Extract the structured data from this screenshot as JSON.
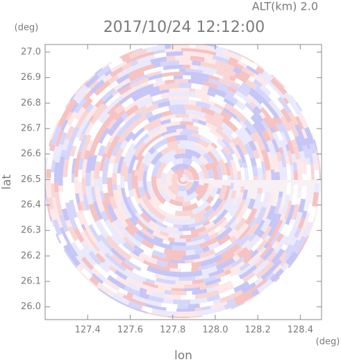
{
  "chart_data": {
    "type": "radar-ppi",
    "title": "2017/10/24 12:12:00",
    "annotation": "ALT(km) 2.0",
    "x_label": "lon",
    "y_label": "lat",
    "x_unit": "(deg)",
    "y_unit": "(deg)",
    "xlim": [
      127.2,
      128.5
    ],
    "xticks": [
      127.4,
      127.6,
      127.8,
      {
        "value": 128.0,
        "label": "128.0"
      },
      128.2,
      128.4
    ],
    "ylim": [
      25.95,
      27.03
    ],
    "yticks": [
      {
        "value": 26.0,
        "label": "26.0"
      },
      26.1,
      26.2,
      26.3,
      26.4,
      26.5,
      26.6,
      26.7,
      26.8,
      26.9,
      {
        "value": 27.0,
        "label": "27.0"
      }
    ]
  }
}
